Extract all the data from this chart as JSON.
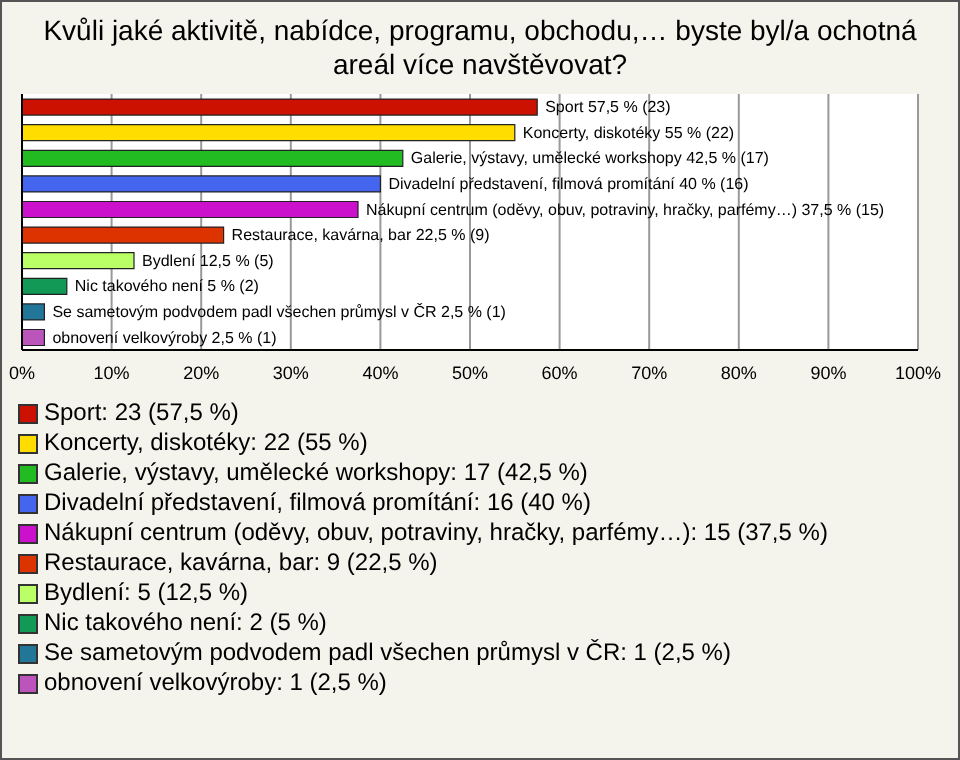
{
  "chart_data": {
    "type": "bar",
    "orientation": "horizontal",
    "title": "Kvůli jaké aktivitě, nabídce, programu, obchodu,… byste byl/a ochotná areál více navštěvovat?",
    "categories": [
      "Sport",
      "Koncerty, diskotéky",
      "Galerie, výstavy, umělecké workshopy",
      "Divadelní představení, filmová promítání",
      "Nákupní centrum (oděvy, obuv, potraviny, hračky, parfémy…)",
      "Restaurace, kavárna, bar",
      "Bydlení",
      "Nic takového není",
      "Se sametovým podvodem padl všechen průmysl v ČR",
      "obnovení velkovýroby"
    ],
    "values": [
      57.5,
      55,
      42.5,
      40,
      37.5,
      22.5,
      12.5,
      5,
      2.5,
      2.5
    ],
    "colors": [
      "#cc1100",
      "#ffdd00",
      "#22bb22",
      "#4466ee",
      "#cc11cc",
      "#dd3300",
      "#bbff66",
      "#119955",
      "#227799",
      "#bb55bb"
    ],
    "value_labels": [
      "57,5 % (23)",
      "55 % (22)",
      "42,5 % (17)",
      "40 % (16)",
      "37,5 % (15)",
      "22,5 % (9)",
      "12,5 % (5)",
      "5 % (2)",
      "2,5 % (1)",
      "2,5 % (1)"
    ],
    "annotations": [
      "Sport: 23 (57,5 %)",
      "Koncerty, diskotéky: 22 (55 %)",
      "Galerie, výstavy, umělecké workshopy: 17 (42,5 %)",
      "Divadelní představení, filmová promítání: 16 (40 %)",
      "Nákupní centrum (oděvy, obuv, potraviny, hračky, parfémy…): 15 (37,5 %)",
      "Restaurace, kavárna, bar: 9 (22,5 %)",
      "Bydlení: 5 (12,5 %)",
      "Nic takového není: 2 (5 %)",
      "Se sametovým podvodem padl všechen průmysl v ČR: 1 (2,5 %)",
      "obnovení velkovýroby: 1 (2,5 %)"
    ],
    "xlim": [
      0,
      100
    ],
    "xticks": [
      {
        "value": 0,
        "label": "0%"
      },
      {
        "value": 10,
        "label": "10%"
      },
      {
        "value": 20,
        "label": "20%"
      },
      {
        "value": 30,
        "label": "30%"
      },
      {
        "value": 40,
        "label": "40%"
      },
      {
        "value": 50,
        "label": "50%"
      },
      {
        "value": 60,
        "label": "60%"
      },
      {
        "value": 70,
        "label": "70%"
      },
      {
        "value": 80,
        "label": "80%"
      },
      {
        "value": 90,
        "label": "90%"
      },
      {
        "value": 100,
        "label": "100%"
      }
    ],
    "grid": "x",
    "tick_labels": "x"
  }
}
